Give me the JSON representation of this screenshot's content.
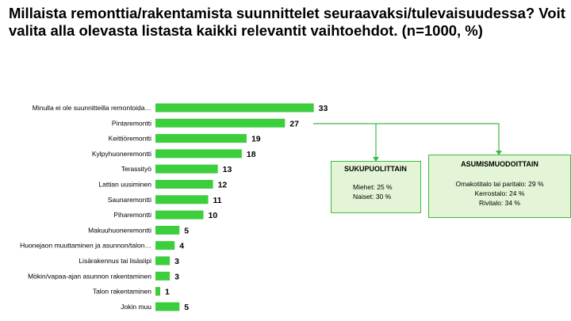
{
  "title": "Millaista remonttia/rakentamista suunnittelet seuraavaksi/tulevaisuudessa? Voit valita alla olevasta listasta kaikki relevantit vaihtoehdot.  (n=1000, %)",
  "chart_data": {
    "type": "bar",
    "orientation": "horizontal",
    "categories": [
      "Minulla ei ole suunnitteilla remontoida…",
      "Pintaremontti",
      "Keittiöremontti",
      "Kylpyhuoneremontti",
      "Terassityö",
      "Lattian uusiminen",
      "Saunaremontti",
      "Piharemontti",
      "Makuuhuoneremontti",
      "Huonejaon muuttaminen ja asunnon/talon…",
      "Lisärakennus tai lisäsiipi",
      "Mökin/vapaa-ajan asunnon rakentaminen",
      "Talon rakentaminen",
      "Jokin muu"
    ],
    "values": [
      33,
      27,
      19,
      18,
      13,
      12,
      11,
      10,
      5,
      4,
      3,
      3,
      1,
      5
    ],
    "xlim": [
      0,
      40
    ],
    "grid": false,
    "legend": "none"
  },
  "callouts": {
    "gender": {
      "title": "SUKUPUOLITTAIN",
      "lines": [
        "Miehet: 25 %",
        "Naiset: 30 %"
      ]
    },
    "housing": {
      "title": "ASUMISMUODOITTAIN",
      "lines": [
        "Omakotitalo tai paritalo: 29 %",
        "Kerrostalo: 24 %",
        "Rivitalo: 34 %"
      ]
    }
  },
  "colors": {
    "bar": "#3dce3d",
    "box_fill": "#e3f5d6",
    "box_border": "#3dba45",
    "connector": "#3dba45"
  }
}
